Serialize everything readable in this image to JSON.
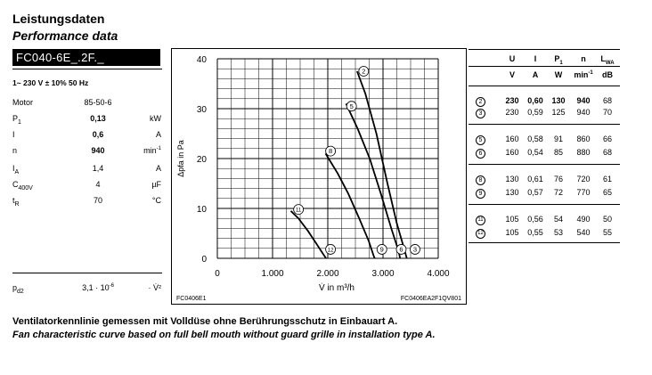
{
  "header": {
    "title_de": "Leistungsdaten",
    "title_en": "Performance data",
    "model": "FC040-6E_.2F._"
  },
  "supply": "1~ 230 V ± 10% 50 Hz",
  "specs": [
    {
      "key": "Motor",
      "value": "85-50-6",
      "unit": ""
    },
    {
      "key": "P",
      "sub": "1",
      "value": "0,13",
      "unit": "kW",
      "bold": true
    },
    {
      "key": "I",
      "sub": "",
      "value": "0,6",
      "unit": "A",
      "bold": true
    },
    {
      "key": "n",
      "sub": "",
      "value": "940",
      "unit": "min-1",
      "bold": true
    },
    {
      "key": "I",
      "sub": "A",
      "value": "1,4",
      "unit": "A"
    },
    {
      "key": "C",
      "sub": "400V",
      "value": "4",
      "unit": "µF"
    },
    {
      "key": "t",
      "sub": "R",
      "value": "70",
      "unit": "°C"
    }
  ],
  "pd2": {
    "key": "p",
    "sub": "d2",
    "value": "3,1 · 10-6",
    "unit": "· V̇²"
  },
  "chart_data": {
    "type": "line",
    "xlabel": "V̇ in m³/h",
    "ylabel": "Δpfa in Pa",
    "xlim": [
      0,
      4000
    ],
    "ylim": [
      0,
      40
    ],
    "x_ticks": [
      "0",
      "1.000",
      "2.000",
      "3.000",
      "4.000"
    ],
    "y_ticks": [
      "0",
      "10",
      "20",
      "30",
      "40"
    ],
    "grid": true,
    "footer_left": "FC0406E1",
    "footer_right": "FC0406EA2F1QV801",
    "series": [
      {
        "name": "2",
        "points": [
          [
            2530,
            37.5
          ],
          [
            2680,
            33
          ],
          [
            2880,
            25
          ],
          [
            3080,
            15
          ],
          [
            3250,
            7
          ],
          [
            3380,
            2
          ],
          [
            3430,
            0
          ]
        ]
      },
      {
        "name": "5",
        "points": [
          [
            2330,
            31
          ],
          [
            2540,
            26
          ],
          [
            2760,
            20
          ],
          [
            2960,
            13
          ],
          [
            3150,
            6
          ],
          [
            3280,
            1.5
          ],
          [
            3310,
            0
          ]
        ]
      },
      {
        "name": "8",
        "points": [
          [
            1960,
            21
          ],
          [
            2180,
            17
          ],
          [
            2370,
            13
          ],
          [
            2570,
            8
          ],
          [
            2740,
            3.5
          ],
          [
            2830,
            0.5
          ],
          [
            2850,
            0
          ]
        ]
      },
      {
        "name": "11",
        "points": [
          [
            1330,
            9.5
          ],
          [
            1470,
            8
          ],
          [
            1640,
            5.5
          ],
          [
            1790,
            3
          ],
          [
            1920,
            0.8
          ],
          [
            1970,
            0
          ]
        ]
      }
    ],
    "labels": [
      {
        "text": "2",
        "x": 2650,
        "y": 37.5
      },
      {
        "text": "5",
        "x": 2430,
        "y": 30.5
      },
      {
        "text": "8",
        "x": 2050,
        "y": 21.5
      },
      {
        "text": "11",
        "x": 1470,
        "y": 9.8
      },
      {
        "text": "12",
        "x": 2050,
        "y": 1.8
      },
      {
        "text": "9",
        "x": 2980,
        "y": 1.8
      },
      {
        "text": "6",
        "x": 3330,
        "y": 1.8
      },
      {
        "text": "3",
        "x": 3580,
        "y": 1.8
      }
    ]
  },
  "table": {
    "headers": [
      "U",
      "I",
      "P1",
      "n",
      "LWA"
    ],
    "units": [
      "V",
      "A",
      "W",
      "min-1",
      "dB"
    ],
    "rows": [
      {
        "id": "2",
        "values": [
          "230",
          "0,60",
          "130",
          "940",
          "68"
        ],
        "bold": true
      },
      {
        "id": "3",
        "values": [
          "230",
          "0,59",
          "125",
          "940",
          "70"
        ]
      },
      {
        "id": "5",
        "values": [
          "160",
          "0,58",
          "91",
          "860",
          "66"
        ]
      },
      {
        "id": "6",
        "values": [
          "160",
          "0,54",
          "85",
          "880",
          "68"
        ]
      },
      {
        "id": "8",
        "values": [
          "130",
          "0,61",
          "76",
          "720",
          "61"
        ]
      },
      {
        "id": "9",
        "values": [
          "130",
          "0,57",
          "72",
          "770",
          "65"
        ]
      },
      {
        "id": "11",
        "values": [
          "105",
          "0,56",
          "54",
          "490",
          "50"
        ]
      },
      {
        "id": "12",
        "values": [
          "105",
          "0,55",
          "53",
          "540",
          "55"
        ]
      }
    ]
  },
  "caption": {
    "de": "Ventilatorkennlinie gemessen mit Volldüse ohne Berührungsschutz in Einbauart A.",
    "en": "Fan characteristic curve based on full bell mouth without guard grille in installation type A."
  }
}
